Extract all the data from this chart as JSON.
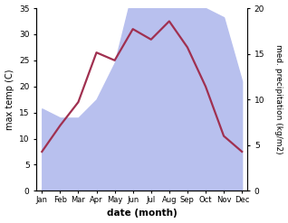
{
  "months": [
    "Jan",
    "Feb",
    "Mar",
    "Apr",
    "May",
    "Jun",
    "Jul",
    "Aug",
    "Sep",
    "Oct",
    "Nov",
    "Dec"
  ],
  "temp": [
    7.5,
    12.5,
    17,
    26.5,
    25,
    31,
    29,
    32.5,
    27.5,
    20,
    10.5,
    7.5
  ],
  "precip": [
    9,
    8,
    8,
    10,
    14,
    22,
    22,
    23,
    20,
    20,
    19,
    12
  ],
  "temp_color": "#a03050",
  "precip_fill_color": "#b8c0ee",
  "temp_ylim": [
    0,
    35
  ],
  "precip_ylim": [
    0,
    20
  ],
  "temp_yticks": [
    0,
    5,
    10,
    15,
    20,
    25,
    30,
    35
  ],
  "precip_yticks": [
    0,
    5,
    10,
    15,
    20
  ],
  "xlabel": "date (month)",
  "ylabel_left": "max temp (C)",
  "ylabel_right": "med. precipitation (kg/m2)",
  "bg_color": "#ffffff",
  "linewidth": 1.6,
  "figsize": [
    3.18,
    2.47
  ],
  "dpi": 100
}
